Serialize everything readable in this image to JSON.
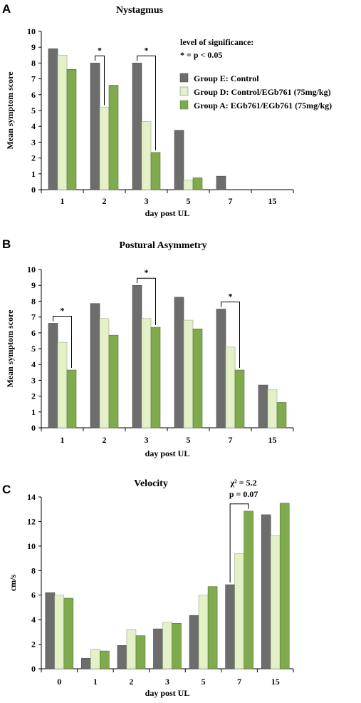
{
  "colors": {
    "E": "#6d6d6d",
    "D": "#e4f0c8",
    "A": "#7faa4e"
  },
  "legend": {
    "sig_title": "level of significance:",
    "sig_def": "* = p < 0.05",
    "entries": [
      "Group E: Control",
      "Group D: Control/EGb761 (75mg/kg)",
      "Group A: EGb761/EGb761 (75mg/kg)"
    ]
  },
  "chart_data": [
    {
      "type": "bar",
      "panel": "A",
      "title": "Nystagmus",
      "xlabel": "day post UL",
      "ylabel": "Mean symptom score",
      "categories": [
        "1",
        "2",
        "3",
        "5",
        "7",
        "15"
      ],
      "ylim": [
        0,
        10
      ],
      "yticks": [
        "0",
        "1",
        "2",
        "3",
        "4",
        "5",
        "6",
        "7",
        "8",
        "9",
        "10"
      ],
      "series": [
        {
          "name": "Group E: Control",
          "values": [
            8.9,
            8.0,
            8.0,
            3.75,
            0.85,
            0
          ]
        },
        {
          "name": "Group D: Control/EGb761 (75mg/kg)",
          "values": [
            8.5,
            5.2,
            4.3,
            0.6,
            0,
            0
          ]
        },
        {
          "name": "Group A: EGb761/EGb761 (75mg/kg)",
          "values": [
            7.6,
            6.6,
            2.35,
            0.75,
            0,
            0
          ]
        }
      ],
      "annotations": [
        {
          "category": "2",
          "from": 0,
          "to": 1,
          "text": "*"
        },
        {
          "category": "3",
          "from": 0,
          "to": 2,
          "text": "*"
        }
      ]
    },
    {
      "type": "bar",
      "panel": "B",
      "title": "Postural Asymmetry",
      "xlabel": "day post UL",
      "ylabel": "Mean symptom score",
      "categories": [
        "1",
        "2",
        "3",
        "5",
        "7",
        "15"
      ],
      "ylim": [
        0,
        10
      ],
      "yticks": [
        "0",
        "1",
        "2",
        "3",
        "4",
        "5",
        "6",
        "7",
        "8",
        "9",
        "10"
      ],
      "series": [
        {
          "name": "Group E: Control",
          "values": [
            6.6,
            7.85,
            9.0,
            8.25,
            7.5,
            2.7
          ]
        },
        {
          "name": "Group D: Control/EGb761 (75mg/kg)",
          "values": [
            5.4,
            6.9,
            6.9,
            6.8,
            5.1,
            2.4
          ]
        },
        {
          "name": "Group A: EGb761/EGb761 (75mg/kg)",
          "values": [
            3.65,
            5.85,
            6.35,
            6.25,
            3.65,
            1.6
          ]
        }
      ],
      "annotations": [
        {
          "category": "1",
          "from": 0,
          "to": 2,
          "text": "*"
        },
        {
          "category": "3",
          "from": 0,
          "to": 2,
          "text": "*"
        },
        {
          "category": "7",
          "from": 0,
          "to": 2,
          "text": "*"
        }
      ]
    },
    {
      "type": "bar",
      "panel": "C",
      "title": "Velocity",
      "xlabel": "day post UL",
      "ylabel": "cm/s",
      "categories": [
        "0",
        "1",
        "2",
        "3",
        "5",
        "7",
        "15"
      ],
      "ylim": [
        0,
        14
      ],
      "yticks": [
        "0",
        "2",
        "4",
        "6",
        "8",
        "10",
        "12",
        "14"
      ],
      "series": [
        {
          "name": "Group E: Control",
          "values": [
            6.2,
            0.85,
            1.9,
            3.25,
            4.35,
            6.85,
            12.55
          ]
        },
        {
          "name": "Group D: Control/EGb761 (75mg/kg)",
          "values": [
            6.0,
            1.6,
            3.2,
            3.8,
            6.0,
            9.4,
            10.85
          ]
        },
        {
          "name": "Group A: EGb761/EGb761 (75mg/kg)",
          "values": [
            5.75,
            1.45,
            2.7,
            3.7,
            6.7,
            12.85,
            13.5
          ]
        }
      ],
      "annotations": [
        {
          "category": "7",
          "from": 0,
          "to": 2,
          "lines": [
            "χ² = 5.2",
            "p = 0.07"
          ]
        }
      ]
    }
  ]
}
